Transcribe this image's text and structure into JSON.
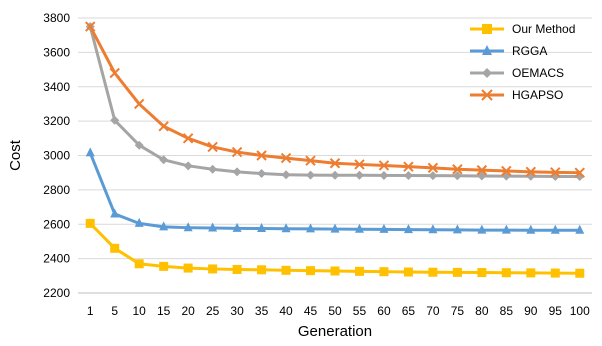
{
  "chart_data": {
    "type": "line",
    "title": "",
    "xlabel": "Generation",
    "ylabel": "Cost",
    "categories": [
      "1",
      "5",
      "10",
      "15",
      "20",
      "25",
      "30",
      "35",
      "40",
      "45",
      "50",
      "55",
      "60",
      "65",
      "70",
      "75",
      "80",
      "85",
      "90",
      "95",
      "100"
    ],
    "ylim": [
      2200,
      3800
    ],
    "yticks": [
      2200,
      2400,
      2600,
      2800,
      3000,
      3200,
      3400,
      3600,
      3800
    ],
    "grid": "horizontal",
    "legend_position": "top-right",
    "series": [
      {
        "name": "Our Method",
        "color": "#FFC000",
        "marker": "square",
        "values": [
          2605,
          2460,
          2370,
          2355,
          2345,
          2340,
          2337,
          2335,
          2332,
          2330,
          2328,
          2326,
          2324,
          2322,
          2321,
          2320,
          2319,
          2318,
          2317,
          2316,
          2315
        ]
      },
      {
        "name": "RGGA",
        "color": "#5B9BD5",
        "marker": "triangle",
        "values": [
          3015,
          2660,
          2605,
          2585,
          2580,
          2578,
          2576,
          2575,
          2574,
          2573,
          2572,
          2571,
          2570,
          2569,
          2568,
          2567,
          2566,
          2566,
          2565,
          2565,
          2565
        ]
      },
      {
        "name": "OEMACS",
        "color": "#A5A5A5",
        "marker": "diamond",
        "values": [
          3750,
          3205,
          3060,
          2975,
          2940,
          2920,
          2905,
          2895,
          2888,
          2886,
          2885,
          2885,
          2884,
          2884,
          2883,
          2882,
          2881,
          2880,
          2879,
          2878,
          2878
        ]
      },
      {
        "name": "HGAPSO",
        "color": "#ED7D31",
        "marker": "x",
        "values": [
          3750,
          3480,
          3300,
          3170,
          3100,
          3050,
          3020,
          3000,
          2985,
          2970,
          2955,
          2948,
          2942,
          2935,
          2928,
          2920,
          2915,
          2910,
          2905,
          2902,
          2900
        ]
      }
    ]
  }
}
